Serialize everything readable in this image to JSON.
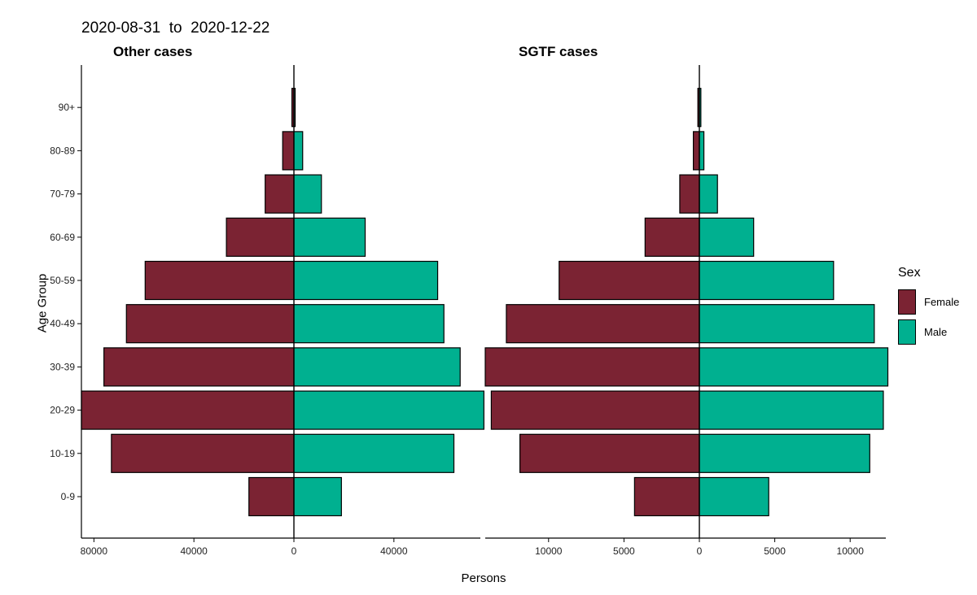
{
  "header": {
    "date_range": "2020-08-31  to  2020-12-22"
  },
  "axes": {
    "ylabel": "Age Group",
    "xlabel": "Persons"
  },
  "legend": {
    "title": "Sex",
    "items": [
      {
        "label": "Female",
        "color": "#7B2333"
      },
      {
        "label": "Male",
        "color": "#00B090"
      }
    ]
  },
  "chart_data": [
    {
      "type": "bar",
      "orientation": "horizontal-population-pyramid",
      "title": "Other cases",
      "categories": [
        "0-9",
        "10-19",
        "20-29",
        "30-39",
        "40-49",
        "50-59",
        "60-69",
        "70-79",
        "80-89",
        "90+"
      ],
      "series": [
        {
          "name": "Female",
          "values": [
            18000,
            73000,
            85000,
            76000,
            67000,
            59500,
            27000,
            11500,
            4500,
            800
          ]
        },
        {
          "name": "Male",
          "values": [
            19000,
            64000,
            76000,
            66500,
            60000,
            57500,
            28500,
            11000,
            3500,
            500
          ]
        }
      ],
      "xlim": [
        -85000,
        76000
      ],
      "xticks": [
        -80000,
        -40000,
        0,
        40000
      ],
      "xtick_labels": [
        "80000",
        "40000",
        "0",
        "40000"
      ]
    },
    {
      "type": "bar",
      "orientation": "horizontal-population-pyramid",
      "title": "SGTF cases",
      "categories": [
        "0-9",
        "10-19",
        "20-29",
        "30-39",
        "40-49",
        "50-59",
        "60-69",
        "70-79",
        "80-89",
        "90+"
      ],
      "series": [
        {
          "name": "Female",
          "values": [
            4300,
            11900,
            13800,
            14200,
            12800,
            9300,
            3600,
            1300,
            400,
            100
          ]
        },
        {
          "name": "Male",
          "values": [
            4600,
            11300,
            12200,
            12500,
            11600,
            8900,
            3600,
            1200,
            300,
            100
          ]
        }
      ],
      "xlim": [
        -14200,
        12500
      ],
      "xticks": [
        -10000,
        -5000,
        0,
        5000,
        10000
      ],
      "xtick_labels": [
        "10000",
        "5000",
        "0",
        "5000",
        "10000"
      ]
    }
  ]
}
